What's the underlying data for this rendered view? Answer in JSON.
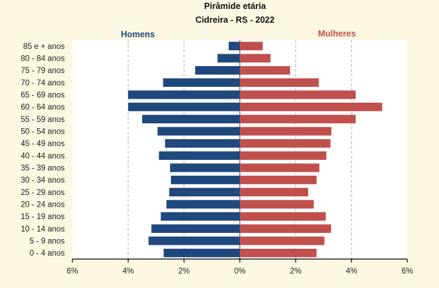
{
  "chart_data": {
    "type": "bar",
    "orientation": "horizontal-population-pyramid",
    "title": "Pirâmide etária",
    "subtitle": "Cidreira - RS - 2022",
    "categories": [
      "85 e + anos",
      "80 - 84 anos",
      "75 - 79 anos",
      "70 - 74 anos",
      "65 - 69 anos",
      "60 - 64 anos",
      "55 - 59 anos",
      "50 - 54 anos",
      "45 - 49 anos",
      "40 - 44 anos",
      "35 - 39 anos",
      "30 - 34 anos",
      "25 - 29 anos",
      "20 - 24 anos",
      "15 - 19 anos",
      "10 - 14 anos",
      "5 - 9 anos",
      "0 - 4 anos"
    ],
    "series": [
      {
        "name": "Homens",
        "color": "#1f497d",
        "values": [
          0.4,
          0.8,
          1.6,
          2.75,
          4.0,
          4.0,
          3.5,
          2.95,
          2.68,
          2.9,
          2.5,
          2.47,
          2.53,
          2.63,
          2.83,
          3.17,
          3.27,
          2.73
        ]
      },
      {
        "name": "Mulheres",
        "color": "#c0504d",
        "values": [
          0.82,
          1.1,
          1.8,
          2.83,
          4.15,
          5.1,
          4.15,
          3.28,
          3.25,
          3.1,
          2.85,
          2.75,
          2.45,
          2.65,
          3.08,
          3.27,
          3.03,
          2.75
        ]
      }
    ],
    "xlim": [
      -6,
      6
    ],
    "xticks": [
      -6,
      -4,
      -2,
      0,
      2,
      4,
      6
    ],
    "xtick_labels": [
      "6%",
      "4%",
      "2%",
      "0%",
      "2%",
      "4%",
      "6%"
    ],
    "xlabel": "",
    "ylabel": "",
    "grid": "vertical dashed",
    "legend": "top-left / top-right labels"
  }
}
